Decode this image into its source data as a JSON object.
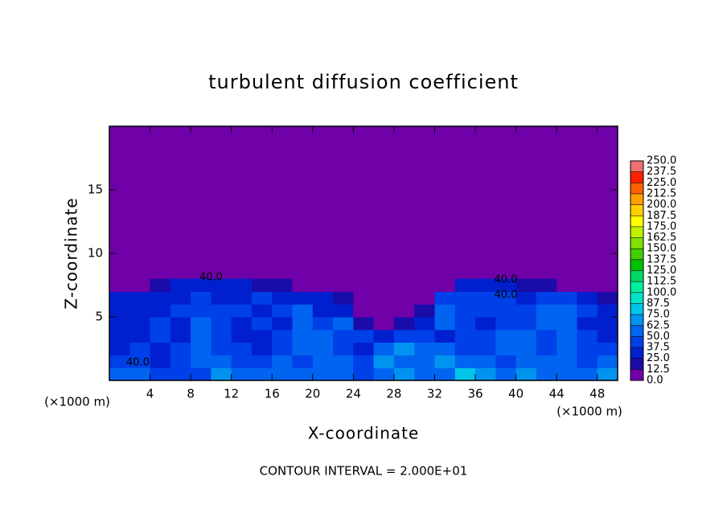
{
  "chart_data": {
    "type": "heatmap",
    "title": "turbulent diffusion coefficient",
    "xlabel": "X-coordinate",
    "ylabel": "Z-coordinate",
    "xunit": "(×1000 m)",
    "yunit": "(×1000 m)",
    "footer": "CONTOUR INTERVAL = 2.000E+01",
    "xlim": [
      0,
      50
    ],
    "ylim": [
      0,
      20
    ],
    "xticks": [
      4,
      8,
      12,
      16,
      20,
      24,
      28,
      32,
      36,
      40,
      44,
      48
    ],
    "yticks": [
      5,
      10,
      15
    ],
    "x": [
      1,
      3,
      5,
      7,
      9,
      11,
      13,
      15,
      17,
      19,
      21,
      23,
      25,
      27,
      29,
      31,
      33,
      35,
      37,
      39,
      41,
      43,
      45,
      47,
      49
    ],
    "y": [
      0.5,
      1.5,
      2.5,
      3.5,
      4.5,
      5.5,
      6.5,
      7.5
    ],
    "z": [
      [
        55,
        60,
        45,
        40,
        45,
        70,
        60,
        55,
        60,
        50,
        55,
        60,
        45,
        60,
        70,
        55,
        60,
        80,
        70,
        60,
        65,
        55,
        50,
        60,
        70
      ],
      [
        40,
        45,
        35,
        40,
        55,
        60,
        45,
        40,
        50,
        45,
        60,
        55,
        40,
        65,
        55,
        60,
        70,
        55,
        50,
        45,
        55,
        50,
        60,
        45,
        50
      ],
      [
        35,
        40,
        35,
        40,
        60,
        45,
        40,
        35,
        45,
        55,
        60,
        40,
        35,
        50,
        70,
        60,
        50,
        45,
        40,
        50,
        60,
        45,
        55,
        40,
        45
      ],
      [
        35,
        35,
        40,
        35,
        60,
        40,
        35,
        35,
        40,
        55,
        50,
        45,
        40,
        35,
        45,
        40,
        35,
        40,
        45,
        55,
        50,
        45,
        60,
        40,
        35
      ],
      [
        30,
        35,
        40,
        35,
        55,
        45,
        35,
        40,
        35,
        55,
        40,
        50,
        20,
        10,
        15,
        25,
        55,
        40,
        35,
        40,
        45,
        55,
        60,
        35,
        30
      ],
      [
        30,
        35,
        35,
        40,
        45,
        40,
        40,
        35,
        40,
        50,
        35,
        30,
        10,
        5,
        5,
        15,
        55,
        45,
        40,
        40,
        45,
        50,
        55,
        40,
        25
      ],
      [
        25,
        30,
        30,
        35,
        40,
        35,
        35,
        40,
        35,
        30,
        25,
        15,
        5,
        2,
        2,
        5,
        40,
        40,
        40,
        40,
        35,
        40,
        45,
        30,
        15
      ],
      [
        5,
        10,
        20,
        30,
        35,
        30,
        25,
        20,
        15,
        10,
        5,
        2,
        0,
        0,
        0,
        0,
        5,
        30,
        35,
        25,
        20,
        15,
        10,
        5,
        2
      ]
    ],
    "levels": [
      {
        "value": 0,
        "label": "0.0"
      },
      {
        "value": 12.5,
        "label": "12.5"
      },
      {
        "value": 25,
        "label": "25.0"
      },
      {
        "value": 37.5,
        "label": "37.5"
      },
      {
        "value": 50,
        "label": "50.0"
      },
      {
        "value": 62.5,
        "label": "62.5"
      },
      {
        "value": 75,
        "label": "75.0"
      },
      {
        "value": 87.5,
        "label": "87.5"
      },
      {
        "value": 100,
        "label": "100.0"
      },
      {
        "value": 112.5,
        "label": "112.5"
      },
      {
        "value": 125,
        "label": "125.0"
      },
      {
        "value": 137.5,
        "label": "137.5"
      },
      {
        "value": 150,
        "label": "150.0"
      },
      {
        "value": 162.5,
        "label": "162.5"
      },
      {
        "value": 175,
        "label": "175.0"
      },
      {
        "value": 187.5,
        "label": "187.5"
      },
      {
        "value": 200,
        "label": "200.0"
      },
      {
        "value": 212.5,
        "label": "212.5"
      },
      {
        "value": 225,
        "label": "225.0"
      },
      {
        "value": 237.5,
        "label": "237.5"
      },
      {
        "value": 250,
        "label": "250.0"
      }
    ],
    "colors": [
      "#7000a8",
      "#1a0ca8",
      "#0020d0",
      "#0040e8",
      "#0064f0",
      "#0094f0",
      "#00c4e8",
      "#00e4c8",
      "#00f0a0",
      "#00d864",
      "#00c000",
      "#40d000",
      "#80e000",
      "#c0f000",
      "#ffff00",
      "#ffd000",
      "#ffa000",
      "#ff6000",
      "#ff2000",
      "#f07070"
    ],
    "annotations": [
      {
        "text": "40.0",
        "x": 10,
        "y": 8.1
      },
      {
        "text": "40.0",
        "x": 2.8,
        "y": 1.4
      },
      {
        "text": "40.0",
        "x": 39,
        "y": 7.9
      },
      {
        "text": "40.0",
        "x": 39,
        "y": 6.7
      }
    ]
  }
}
